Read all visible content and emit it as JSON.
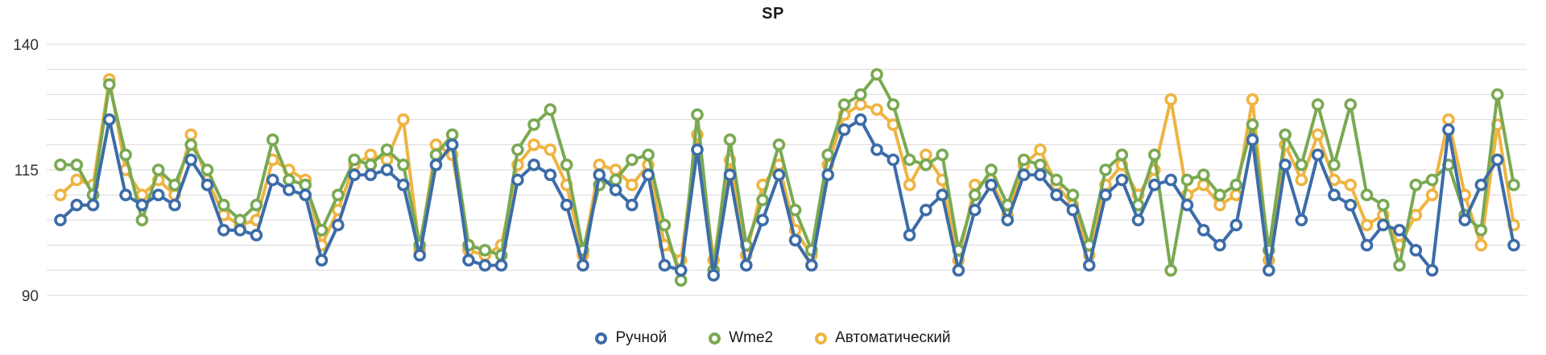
{
  "chart_data": {
    "type": "line",
    "title": "SP",
    "xlabel": "",
    "ylabel": "",
    "ylim": [
      90,
      140
    ],
    "grid": true,
    "grid_step": 5,
    "y_ticks": [
      90,
      115,
      140
    ],
    "legend_position": "bottom",
    "marker_style": "open-ring",
    "series": [
      {
        "name": "Ручной",
        "color": "#3C6CA8",
        "values": [
          105,
          108,
          108,
          125,
          110,
          108,
          110,
          108,
          117,
          112,
          103,
          103,
          102,
          113,
          111,
          110,
          97,
          104,
          114,
          114,
          115,
          112,
          98,
          116,
          120,
          97,
          96,
          96,
          113,
          116,
          114,
          108,
          96,
          114,
          111,
          108,
          114,
          96,
          95,
          119,
          94,
          114,
          96,
          105,
          114,
          101,
          96,
          114,
          123,
          125,
          119,
          117,
          102,
          107,
          110,
          95,
          107,
          112,
          105,
          114,
          114,
          110,
          107,
          96,
          110,
          113,
          105,
          112,
          113,
          108,
          103,
          100,
          104,
          121,
          95,
          116,
          105,
          118,
          110,
          108,
          100,
          104,
          103,
          99,
          95,
          123,
          105,
          112,
          117,
          100
        ]
      },
      {
        "name": "Wme2",
        "color": "#79A952",
        "values": [
          116,
          116,
          110,
          132,
          118,
          105,
          115,
          112,
          120,
          115,
          108,
          105,
          108,
          121,
          113,
          112,
          103,
          110,
          117,
          116,
          119,
          116,
          100,
          118,
          122,
          100,
          99,
          98,
          119,
          124,
          127,
          116,
          99,
          112,
          113,
          117,
          118,
          104,
          93,
          126,
          95,
          121,
          100,
          109,
          120,
          107,
          99,
          118,
          128,
          130,
          134,
          128,
          117,
          116,
          118,
          99,
          110,
          115,
          108,
          117,
          116,
          113,
          110,
          100,
          115,
          118,
          108,
          118,
          95,
          113,
          114,
          110,
          112,
          124,
          99,
          122,
          116,
          128,
          116,
          128,
          110,
          108,
          96,
          112,
          113,
          116,
          106,
          103,
          130,
          112
        ]
      },
      {
        "name": "Автоматический",
        "color": "#EFB441",
        "values": [
          110,
          113,
          112,
          133,
          115,
          110,
          113,
          110,
          122,
          113,
          106,
          104,
          105,
          117,
          115,
          113,
          100,
          107,
          116,
          118,
          117,
          125,
          99,
          120,
          118,
          99,
          98,
          100,
          116,
          120,
          119,
          112,
          98,
          116,
          115,
          112,
          116,
          100,
          97,
          122,
          97,
          117,
          98,
          112,
          116,
          103,
          98,
          116,
          126,
          128,
          127,
          124,
          112,
          118,
          113,
          97,
          112,
          113,
          106,
          116,
          119,
          112,
          108,
          98,
          112,
          116,
          110,
          115,
          129,
          110,
          112,
          108,
          110,
          129,
          97,
          120,
          113,
          122,
          113,
          112,
          104,
          106,
          100,
          106,
          110,
          125,
          110,
          100,
          124,
          104
        ]
      }
    ]
  }
}
